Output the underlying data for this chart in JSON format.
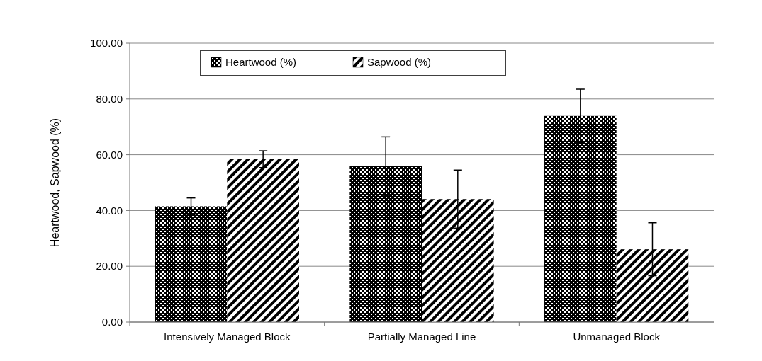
{
  "chart_data": {
    "type": "bar",
    "categories": [
      "Intensively Managed Block",
      "Partially Managed Line",
      "Unmanaged Block"
    ],
    "ylabel": "Heartwood, Sapwood (%)",
    "series": [
      {
        "name": "Heartwood (%)",
        "color": "#000000",
        "values": [
          41.5,
          55.9,
          73.9
        ],
        "errors": [
          3.0,
          10.5,
          9.6
        ]
      },
      {
        "name": "Sapwood (%)",
        "color": "#000000",
        "values": [
          58.4,
          44.1,
          26.1
        ],
        "errors": [
          3.0,
          10.4,
          9.5
        ]
      }
    ],
    "ylim": [
      0,
      100
    ],
    "yticks": [
      {
        "value": 0,
        "label": "0.00"
      },
      {
        "value": 20,
        "label": "20.00"
      },
      {
        "value": 40,
        "label": "40.00"
      },
      {
        "value": 60,
        "label": "60.00"
      },
      {
        "value": 80,
        "label": "80.00"
      },
      {
        "value": 100,
        "label": "100.00"
      }
    ],
    "grid": "y",
    "legend": "top left"
  }
}
